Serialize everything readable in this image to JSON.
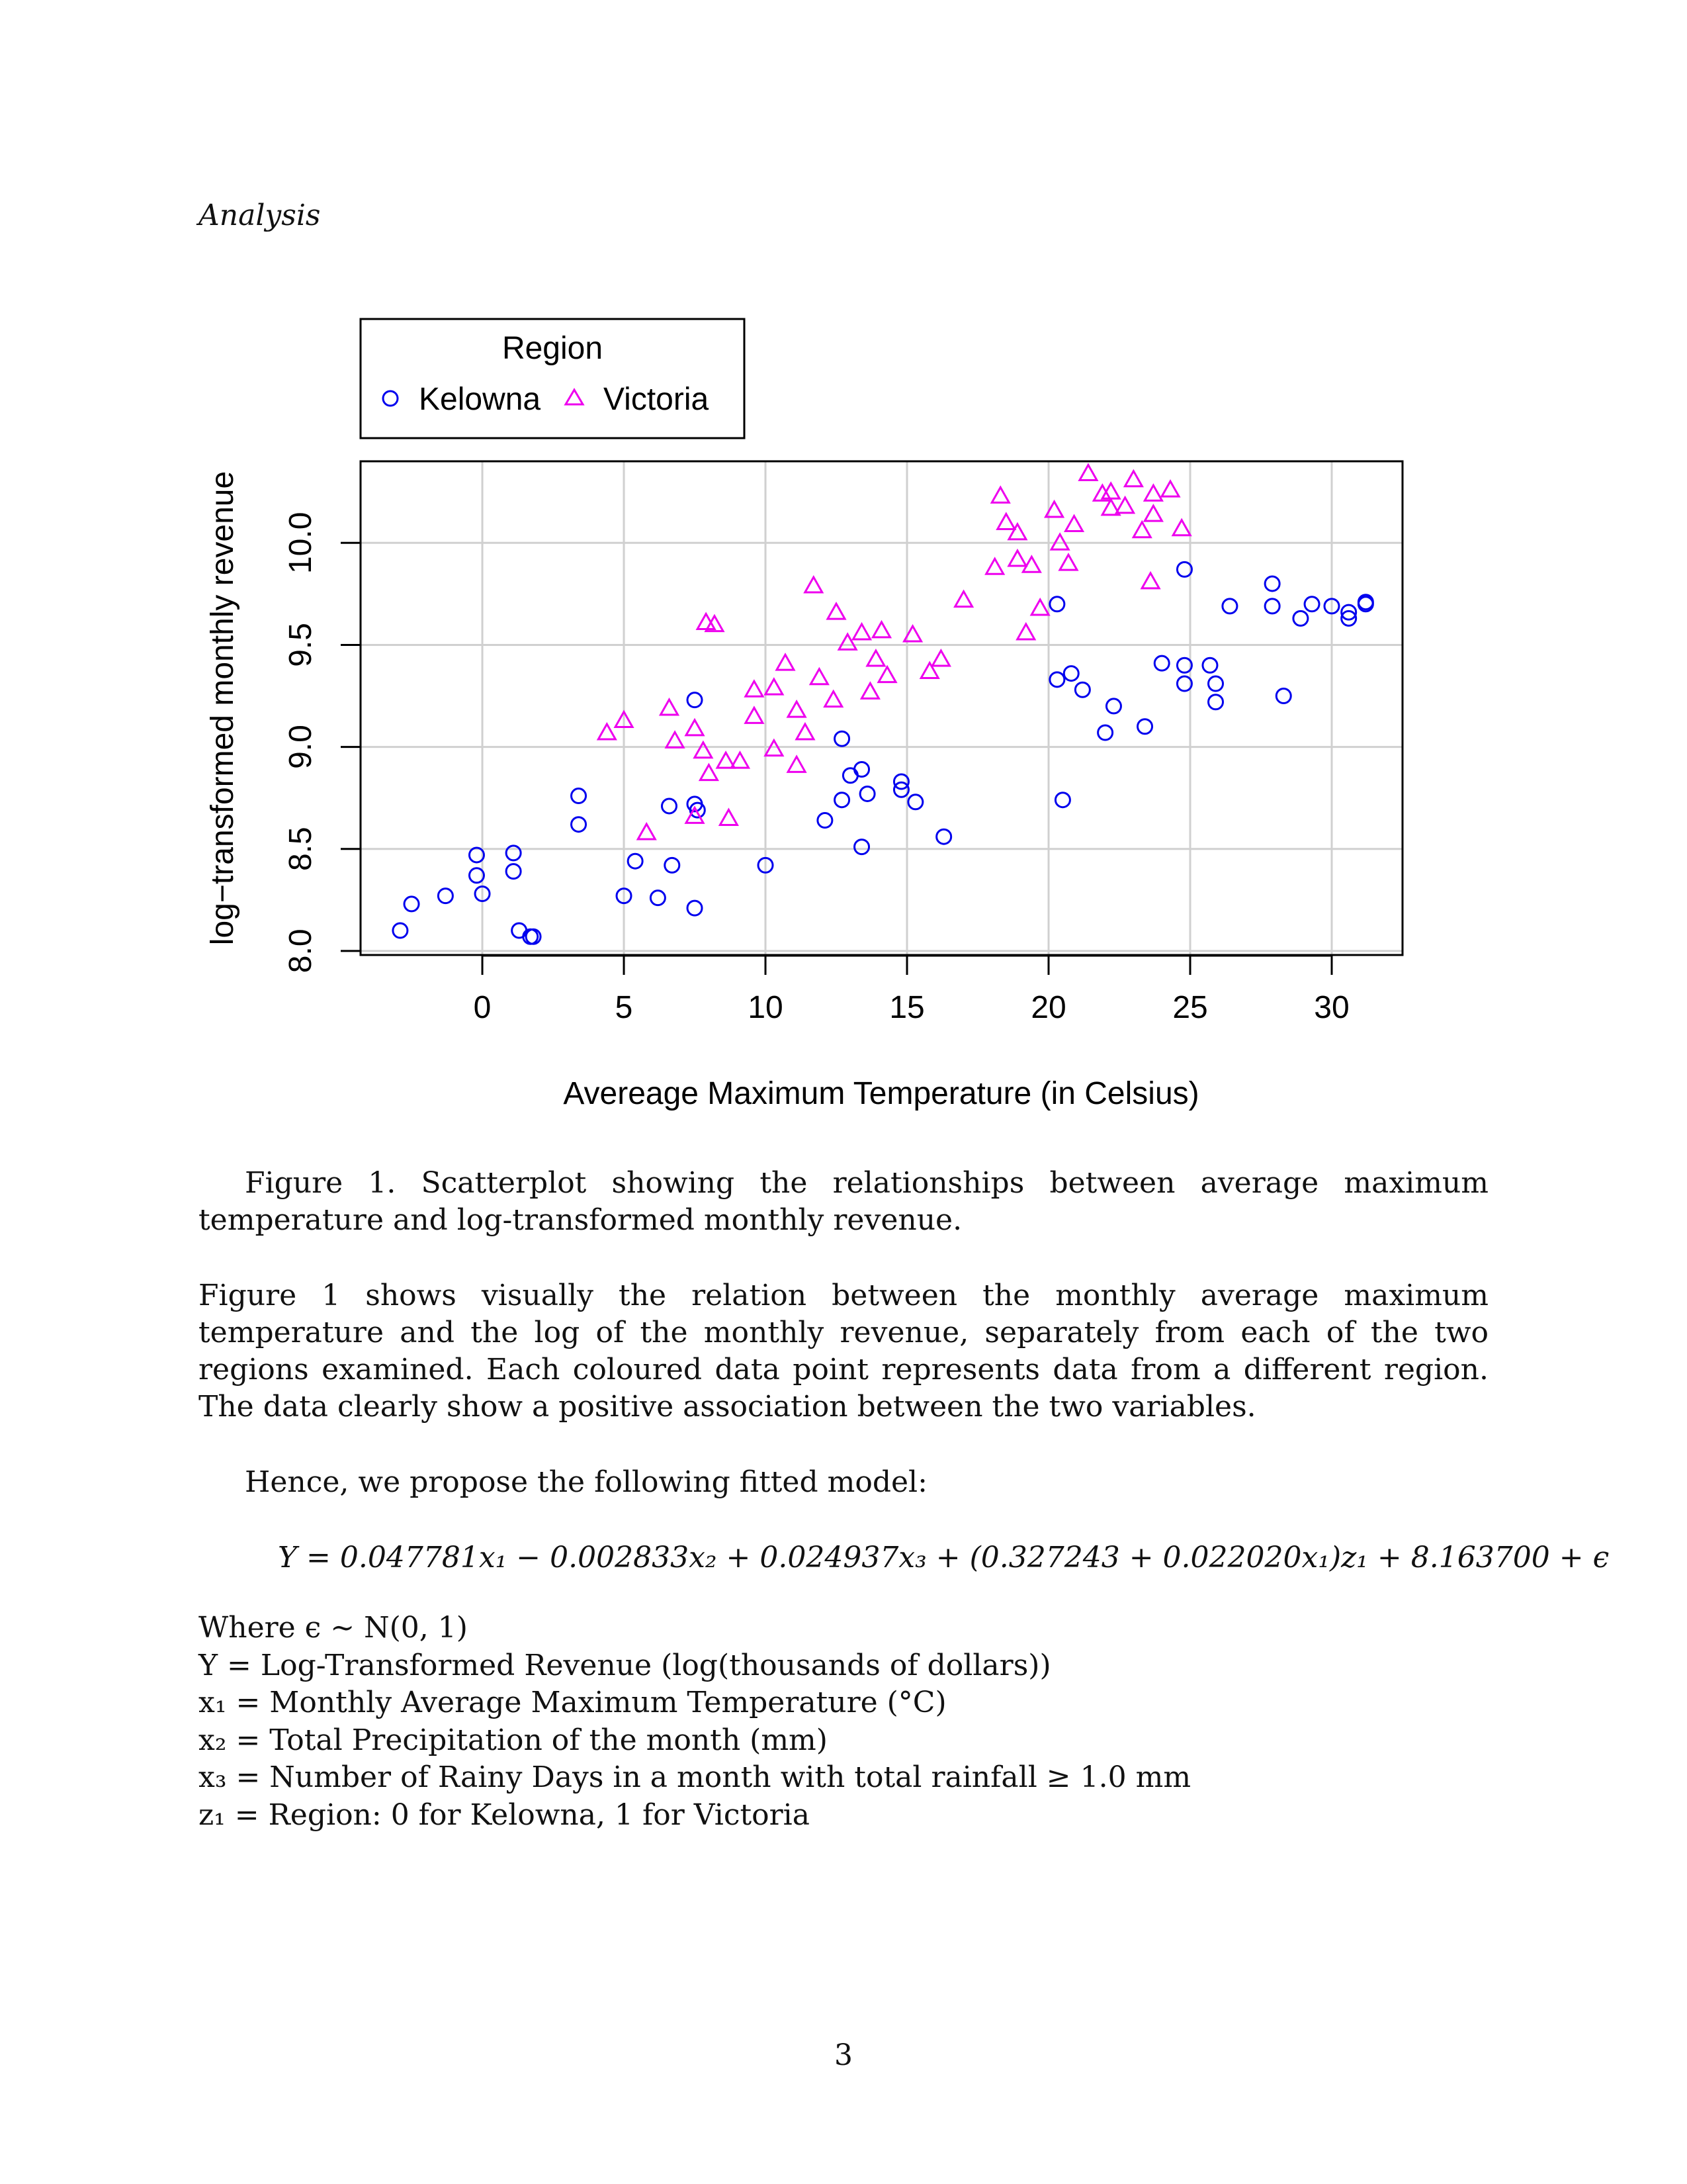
{
  "running_head": "Analysis",
  "caption": "Figure 1. Scatterplot showing the relationships between average maximum temperature and log-transformed monthly revenue.",
  "paragraph_1": "Figure 1 shows visually the relation between the monthly average maximum temperature and the log of the monthly revenue, separately from each of the two regions examined. Each coloured data point represents data from a different region. The data clearly show a positive association between the two variables.",
  "paragraph_2": "Hence, we propose the following fitted model:",
  "equation": "Y = 0.047781x₁ − 0.002833x₂ + 0.024937x₃ + (0.327243 + 0.022020x₁)z₁ + 8.163700 + ϵ",
  "definitions": [
    "Where ϵ ~ N(0, 1)",
    "Y = Log-Transformed Revenue (log(thousands of dollars))",
    "x₁ = Monthly Average Maximum Temperature (°C)",
    "x₂ = Total Precipitation of the month (mm)",
    "x₃ = Number of Rainy Days in a month with total rainfall ≥ 1.0 mm",
    "z₁ = Region: 0 for Kelowna, 1 for Victoria"
  ],
  "page_number": "3",
  "chart_data": {
    "type": "scatter",
    "title": "",
    "xlabel": "Avereage Maximum Temperature (in Celsius)",
    "ylabel": "log−transformed monthly revenue",
    "xlim": [
      -4.3,
      32.5
    ],
    "ylim": [
      7.98,
      10.4
    ],
    "x_ticks": [
      "0",
      "5",
      "10",
      "15",
      "20",
      "25",
      "30"
    ],
    "y_ticks": [
      "8.0",
      "8.5",
      "9.0",
      "9.5",
      "10.0"
    ],
    "grid": true,
    "legend": {
      "title": "Region",
      "placement": "top-left, above plot"
    },
    "series": [
      {
        "name": "Kelowna",
        "marker": "circle",
        "color": "#0000ee",
        "points": [
          [
            -2.9,
            8.1
          ],
          [
            -2.5,
            8.23
          ],
          [
            -1.3,
            8.27
          ],
          [
            -0.2,
            8.47
          ],
          [
            -0.2,
            8.37
          ],
          [
            0.0,
            8.28
          ],
          [
            1.1,
            8.48
          ],
          [
            1.1,
            8.39
          ],
          [
            1.3,
            8.1
          ],
          [
            1.7,
            8.07
          ],
          [
            1.8,
            8.07
          ],
          [
            3.4,
            8.76
          ],
          [
            3.4,
            8.62
          ],
          [
            5.0,
            8.27
          ],
          [
            5.4,
            8.44
          ],
          [
            6.2,
            8.26
          ],
          [
            6.6,
            8.71
          ],
          [
            6.7,
            8.42
          ],
          [
            7.5,
            9.23
          ],
          [
            7.5,
            8.72
          ],
          [
            7.6,
            8.69
          ],
          [
            7.5,
            8.21
          ],
          [
            10.0,
            8.42
          ],
          [
            12.1,
            8.64
          ],
          [
            12.7,
            9.04
          ],
          [
            12.7,
            8.74
          ],
          [
            13.0,
            8.86
          ],
          [
            13.4,
            8.89
          ],
          [
            13.6,
            8.77
          ],
          [
            13.4,
            8.51
          ],
          [
            14.8,
            8.83
          ],
          [
            14.8,
            8.79
          ],
          [
            15.3,
            8.73
          ],
          [
            16.3,
            8.56
          ],
          [
            20.3,
            9.7
          ],
          [
            20.3,
            9.33
          ],
          [
            20.5,
            8.74
          ],
          [
            20.8,
            9.36
          ],
          [
            21.2,
            9.28
          ],
          [
            22.0,
            9.07
          ],
          [
            22.3,
            9.2
          ],
          [
            23.4,
            9.1
          ],
          [
            24.0,
            9.41
          ],
          [
            24.8,
            9.87
          ],
          [
            24.8,
            9.4
          ],
          [
            24.8,
            9.31
          ],
          [
            25.7,
            9.4
          ],
          [
            25.9,
            9.31
          ],
          [
            25.9,
            9.22
          ],
          [
            26.4,
            9.69
          ],
          [
            27.9,
            9.8
          ],
          [
            27.9,
            9.69
          ],
          [
            28.3,
            9.25
          ],
          [
            28.9,
            9.63
          ],
          [
            29.3,
            9.7
          ],
          [
            30.0,
            9.69
          ],
          [
            30.6,
            9.66
          ],
          [
            30.6,
            9.63
          ],
          [
            31.2,
            9.7
          ],
          [
            31.2,
            9.71
          ]
        ]
      },
      {
        "name": "Victoria",
        "marker": "triangle",
        "color": "#ee00ee",
        "points": [
          [
            4.4,
            9.07
          ],
          [
            5.0,
            9.13
          ],
          [
            5.8,
            8.58
          ],
          [
            6.6,
            9.19
          ],
          [
            6.8,
            9.03
          ],
          [
            7.5,
            9.09
          ],
          [
            7.5,
            8.66
          ],
          [
            7.8,
            8.98
          ],
          [
            7.9,
            9.61
          ],
          [
            8.0,
            8.87
          ],
          [
            8.2,
            9.6
          ],
          [
            8.6,
            8.93
          ],
          [
            8.7,
            8.65
          ],
          [
            9.1,
            8.93
          ],
          [
            9.6,
            9.28
          ],
          [
            9.6,
            9.15
          ],
          [
            10.3,
            9.29
          ],
          [
            10.3,
            8.99
          ],
          [
            10.7,
            9.41
          ],
          [
            11.1,
            9.18
          ],
          [
            11.1,
            8.91
          ],
          [
            11.4,
            9.07
          ],
          [
            11.7,
            9.79
          ],
          [
            11.9,
            9.34
          ],
          [
            12.4,
            9.23
          ],
          [
            12.5,
            9.66
          ],
          [
            12.9,
            9.51
          ],
          [
            13.4,
            9.56
          ],
          [
            13.7,
            9.27
          ],
          [
            13.9,
            9.43
          ],
          [
            14.1,
            9.57
          ],
          [
            14.3,
            9.35
          ],
          [
            15.2,
            9.55
          ],
          [
            15.8,
            9.37
          ],
          [
            16.2,
            9.43
          ],
          [
            17.0,
            9.72
          ],
          [
            18.1,
            9.88
          ],
          [
            18.3,
            10.23
          ],
          [
            18.5,
            10.1
          ],
          [
            18.9,
            10.05
          ],
          [
            18.9,
            9.92
          ],
          [
            19.2,
            9.56
          ],
          [
            19.4,
            9.89
          ],
          [
            19.7,
            9.68
          ],
          [
            20.2,
            10.16
          ],
          [
            20.4,
            10.0
          ],
          [
            20.7,
            9.9
          ],
          [
            20.9,
            10.09
          ],
          [
            21.4,
            10.34
          ],
          [
            21.9,
            10.24
          ],
          [
            22.2,
            10.25
          ],
          [
            22.2,
            10.17
          ],
          [
            22.7,
            10.18
          ],
          [
            23.0,
            10.31
          ],
          [
            23.3,
            10.06
          ],
          [
            23.6,
            9.81
          ],
          [
            23.7,
            10.24
          ],
          [
            23.7,
            10.14
          ],
          [
            24.3,
            10.26
          ],
          [
            24.7,
            10.07
          ]
        ]
      }
    ]
  }
}
